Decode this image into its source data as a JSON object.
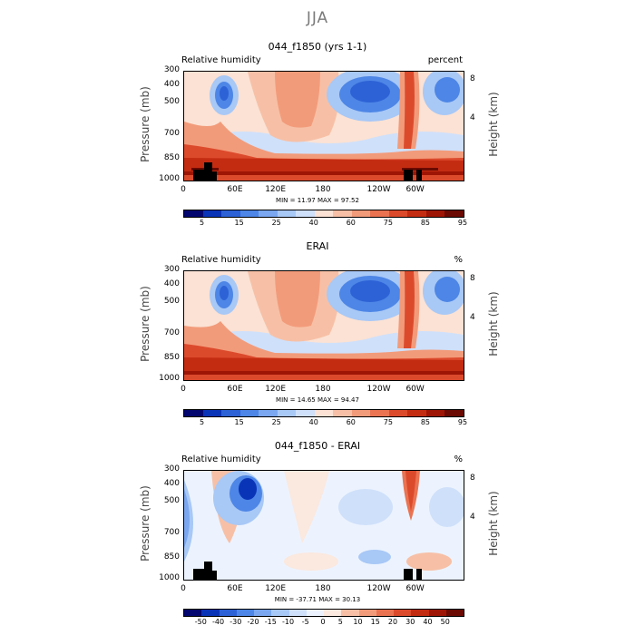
{
  "figure_title": "JJA",
  "colors": {
    "palette_abs": [
      "#04066f",
      "#0a34b8",
      "#2d62d6",
      "#4d86e6",
      "#7aa7ef",
      "#a8c8f6",
      "#cfe0fa",
      "#fbe2d4",
      "#f7c0a6",
      "#f29b7a",
      "#ea7352",
      "#dc4a2c",
      "#c42c12",
      "#9e1505",
      "#6a0a02"
    ],
    "palette_diff": [
      "#04066f",
      "#0a34b8",
      "#2d62d6",
      "#4d86e6",
      "#7aa7ef",
      "#a8c8f6",
      "#cfe0fa",
      "#ecf3fe",
      "#fbe8de",
      "#f7c0a6",
      "#f29b7a",
      "#ea7352",
      "#dc4a2c",
      "#c42c12",
      "#9e1505",
      "#6a0a02"
    ]
  },
  "axes": {
    "pressure_ticks": [
      "300",
      "400",
      "500",
      "700",
      "850",
      "1000"
    ],
    "height_ticks": [
      "8",
      "4"
    ],
    "x_ticks": [
      "0",
      "60E",
      "120E",
      "180",
      "120W",
      "60W"
    ],
    "ylabel": "Pressure (mb)",
    "ylabel_right": "Height (km)"
  },
  "panels": [
    {
      "title": "044_f1850 (yrs 1-1)",
      "left_string": "Relative humidity",
      "right_string": "percent",
      "stats": "MIN =   11.97   MAX =   97.52",
      "cbar_labels": [
        "5",
        "15",
        "25",
        "40",
        "60",
        "75",
        "85",
        "95"
      ]
    },
    {
      "title": "ERAI",
      "left_string": "Relative humidity",
      "right_string": "%",
      "stats": "MIN =   14.65   MAX =   94.47",
      "cbar_labels": [
        "5",
        "15",
        "25",
        "40",
        "60",
        "75",
        "85",
        "95"
      ]
    },
    {
      "title": "044_f1850 - ERAI",
      "left_string": "Relative humidity",
      "right_string": "%",
      "stats": "MIN =  -37.71   MAX =   30.13",
      "cbar_labels": [
        "-50",
        "-40",
        "-30",
        "-20",
        "-15",
        "-10",
        "-5",
        "0",
        "5",
        "10",
        "15",
        "20",
        "30",
        "40",
        "50"
      ]
    }
  ],
  "chart_data": [
    {
      "type": "heatmap",
      "title": "044_f1850 (yrs 1-1)",
      "variable": "Relative humidity",
      "units": "percent",
      "x": [
        "0",
        "60E",
        "120E",
        "180",
        "120W",
        "60W"
      ],
      "y": [
        "300",
        "400",
        "500",
        "700",
        "850",
        "1000"
      ],
      "ylabel": "Pressure (mb)",
      "min": 11.97,
      "max": 97.52,
      "levels": [
        5,
        10,
        15,
        20,
        25,
        30,
        40,
        50,
        60,
        70,
        75,
        80,
        85,
        90,
        95
      ]
    },
    {
      "type": "heatmap",
      "title": "ERAI",
      "variable": "Relative humidity",
      "units": "%",
      "x": [
        "0",
        "60E",
        "120E",
        "180",
        "120W",
        "60W"
      ],
      "y": [
        "300",
        "400",
        "500",
        "700",
        "850",
        "1000"
      ],
      "ylabel": "Pressure (mb)",
      "min": 14.65,
      "max": 94.47,
      "levels": [
        5,
        10,
        15,
        20,
        25,
        30,
        40,
        50,
        60,
        70,
        75,
        80,
        85,
        90,
        95
      ]
    },
    {
      "type": "heatmap",
      "title": "044_f1850 - ERAI",
      "variable": "Relative humidity",
      "units": "%",
      "x": [
        "0",
        "60E",
        "120E",
        "180",
        "120W",
        "60W"
      ],
      "y": [
        "300",
        "400",
        "500",
        "700",
        "850",
        "1000"
      ],
      "ylabel": "Pressure (mb)",
      "min": -37.71,
      "max": 30.13,
      "levels": [
        -50,
        -40,
        -30,
        -20,
        -15,
        -10,
        -5,
        0,
        5,
        10,
        15,
        20,
        30,
        40,
        50
      ]
    }
  ]
}
